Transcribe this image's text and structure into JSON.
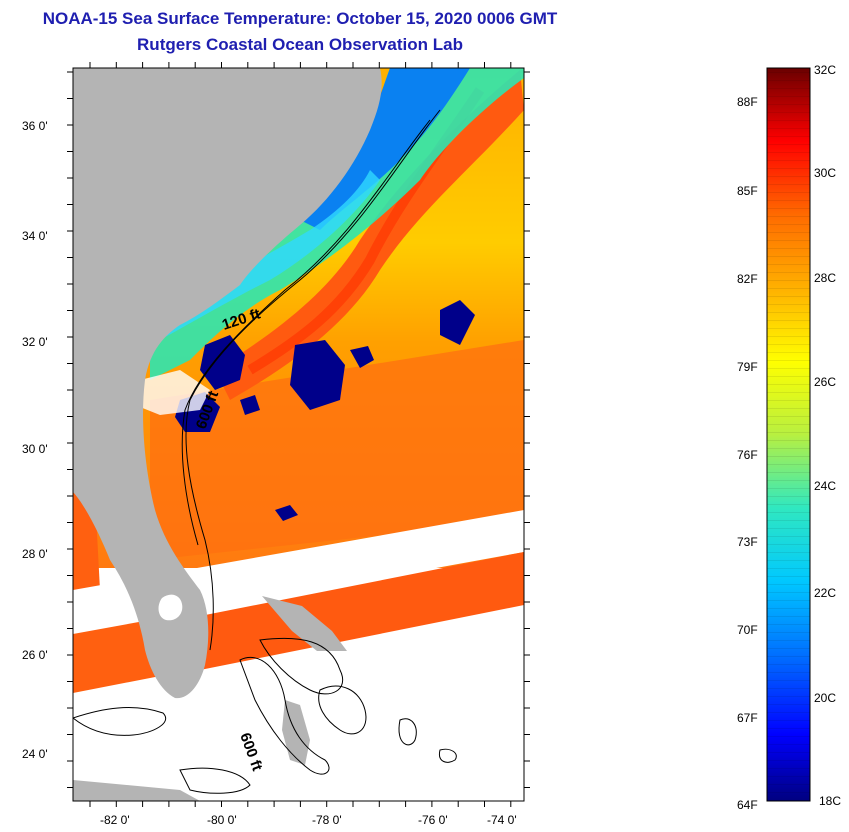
{
  "title_line1": "NOAA-15 Sea Surface Temperature:  October 15, 2020 0006 GMT",
  "title_line2": "Rutgers Coastal Ocean Observation Lab",
  "lat_ticks": [
    "36 0'",
    "34 0'",
    "32 0'",
    "30 0'",
    "28 0'",
    "26 0'",
    "24 0'"
  ],
  "lon_ticks": [
    "-82 0'",
    "-80 0'",
    "-78 0'",
    "-76 0'",
    "-74 0'"
  ],
  "contour_labels": {
    "shelf": "120 ft",
    "slope_north": "600 ft",
    "slope_south": "600 ft"
  },
  "colorbar": {
    "celsius": [
      "32C",
      "30C",
      "28C",
      "26C",
      "24C",
      "22C",
      "20C",
      "18C"
    ],
    "fahrenheit": [
      "88F",
      "85F",
      "82F",
      "79F",
      "76F",
      "73F",
      "70F",
      "67F",
      "64F"
    ],
    "colors": [
      "#000080",
      "#0000ff",
      "#0070ff",
      "#00c8ff",
      "#30e8c0",
      "#b8f040",
      "#ffff00",
      "#ffb000",
      "#ff6a00",
      "#ff0000",
      "#a00000",
      "#6a0000"
    ]
  },
  "colors": {
    "land": "#b4b4b4",
    "title": "#1f1fb0",
    "gulf_stream": "#ff5a10"
  }
}
